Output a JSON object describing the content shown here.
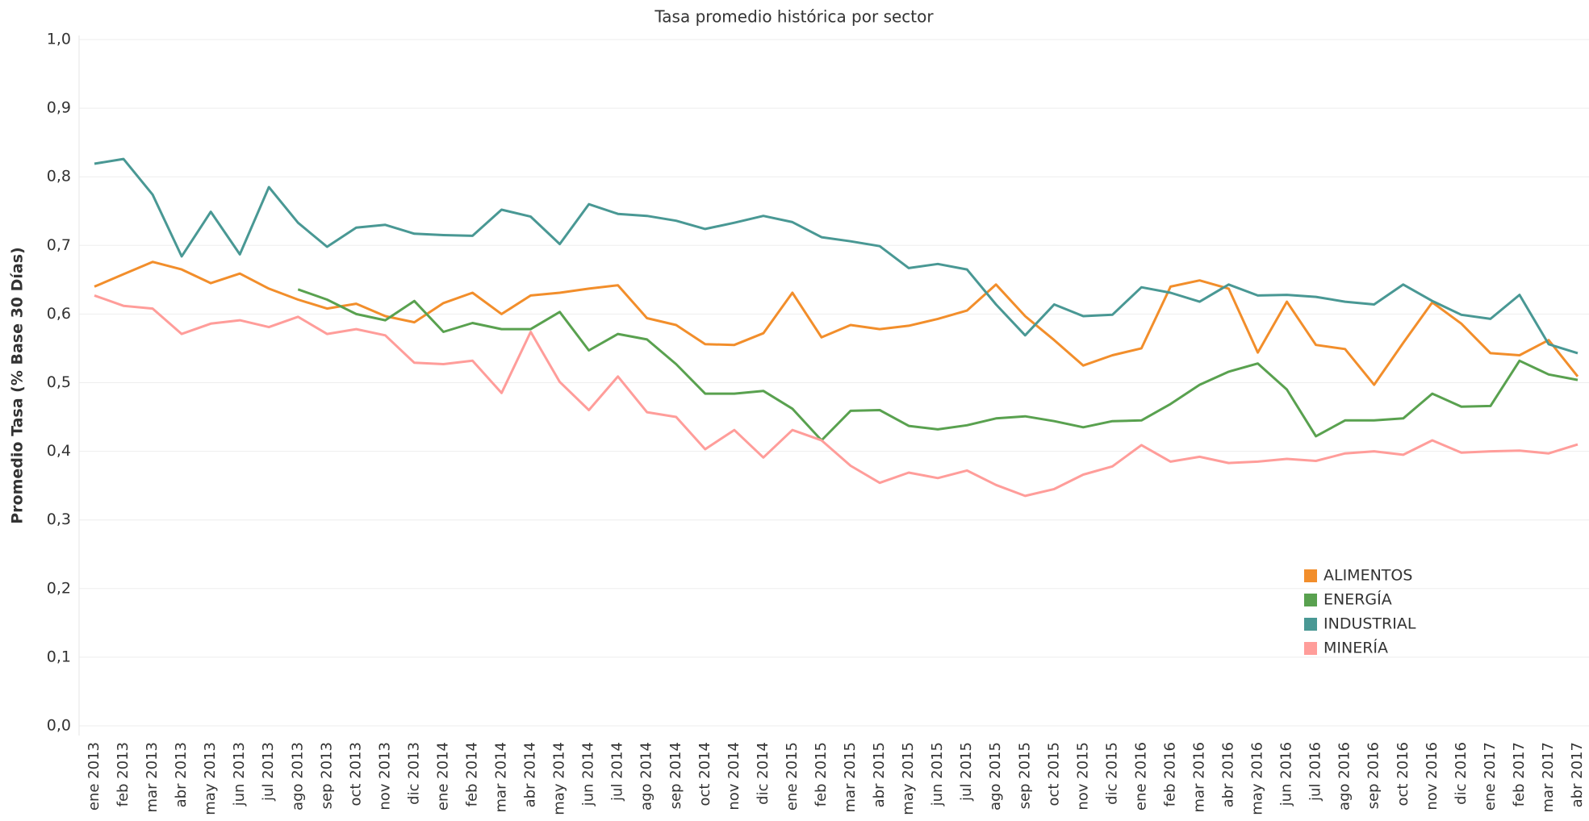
{
  "chart_data": {
    "type": "line",
    "title": "Tasa promedio histórica por sector",
    "y_label": "Promedio Tasa (% Base 30 Días)",
    "categories": [
      "ene 2013",
      "feb 2013",
      "mar 2013",
      "abr 2013",
      "may 2013",
      "jun 2013",
      "jul 2013",
      "ago 2013",
      "sep 2013",
      "oct 2013",
      "nov 2013",
      "dic 2013",
      "ene 2014",
      "feb 2014",
      "mar 2014",
      "abr 2014",
      "may 2014",
      "jun 2014",
      "jul 2014",
      "ago 2014",
      "sep 2014",
      "oct 2014",
      "nov 2014",
      "dic 2014",
      "ene 2015",
      "feb 2015",
      "mar 2015",
      "abr 2015",
      "may 2015",
      "jun 2015",
      "jul 2015",
      "ago 2015",
      "sep 2015",
      "oct 2015",
      "nov 2015",
      "dic 2015",
      "ene 2016",
      "feb 2016",
      "mar 2016",
      "abr 2016",
      "may 2016",
      "jun 2016",
      "jul 2016",
      "ago 2016",
      "sep 2016",
      "oct 2016",
      "nov 2016",
      "dic 2016",
      "ene 2017",
      "feb 2017",
      "mar 2017",
      "abr 2017"
    ],
    "series": [
      {
        "name": "ALIMENTOS",
        "color": "#f28e2b",
        "values": [
          0.64,
          0.658,
          0.676,
          0.665,
          0.645,
          0.659,
          0.637,
          0.621,
          0.608,
          0.615,
          0.597,
          0.588,
          0.616,
          0.631,
          0.6,
          0.627,
          0.631,
          0.637,
          0.642,
          0.594,
          0.584,
          0.556,
          0.555,
          0.572,
          0.631,
          0.566,
          0.584,
          0.578,
          0.583,
          0.593,
          0.605,
          0.643,
          0.597,
          0.562,
          0.525,
          0.54,
          0.55,
          0.64,
          0.649,
          0.637,
          0.544,
          0.618,
          0.555,
          0.549,
          0.497,
          0.558,
          0.617,
          0.586,
          0.543,
          0.54,
          0.562,
          0.509
        ]
      },
      {
        "name": "ENERGÍA",
        "color": "#59a14f",
        "values": [
          null,
          null,
          null,
          null,
          null,
          null,
          null,
          0.636,
          0.621,
          0.6,
          0.591,
          0.619,
          0.574,
          0.587,
          0.578,
          0.578,
          0.603,
          0.547,
          0.571,
          0.563,
          0.527,
          0.484,
          0.484,
          0.488,
          0.462,
          0.416,
          0.459,
          0.46,
          0.437,
          0.432,
          0.438,
          0.448,
          0.451,
          0.444,
          0.435,
          0.444,
          0.445,
          0.469,
          0.497,
          0.516,
          0.528,
          0.49,
          0.422,
          0.445,
          0.445,
          0.448,
          0.484,
          0.465,
          0.466,
          0.532,
          0.512,
          0.504
        ]
      },
      {
        "name": "INDUSTRIAL",
        "color": "#499894",
        "values": [
          0.819,
          0.826,
          0.774,
          0.684,
          0.749,
          0.687,
          0.785,
          0.733,
          0.698,
          0.726,
          0.73,
          0.717,
          0.715,
          0.714,
          0.752,
          0.742,
          0.702,
          0.76,
          0.746,
          0.743,
          0.736,
          0.724,
          0.733,
          0.743,
          0.734,
          0.712,
          0.706,
          0.699,
          0.667,
          0.673,
          0.665,
          0.614,
          0.569,
          0.614,
          0.597,
          0.599,
          0.639,
          0.631,
          0.618,
          0.643,
          0.627,
          0.628,
          0.625,
          0.618,
          0.614,
          0.643,
          0.619,
          0.599,
          0.593,
          0.628,
          0.556,
          0.543
        ]
      },
      {
        "name": "MINERÍA",
        "color": "#ff9d9a",
        "values": [
          0.627,
          0.612,
          0.608,
          0.571,
          0.586,
          0.591,
          0.581,
          0.596,
          0.571,
          0.578,
          0.569,
          0.529,
          0.527,
          0.532,
          0.485,
          0.574,
          0.501,
          0.46,
          0.509,
          0.457,
          0.45,
          0.403,
          0.431,
          0.391,
          0.431,
          0.416,
          0.379,
          0.354,
          0.369,
          0.361,
          0.372,
          0.351,
          0.335,
          0.345,
          0.366,
          0.378,
          0.409,
          0.385,
          0.392,
          0.383,
          0.385,
          0.389,
          0.386,
          0.397,
          0.4,
          0.395,
          0.416,
          0.398,
          0.4,
          0.401,
          0.397,
          0.41
        ]
      }
    ],
    "ylim": [
      0,
      1
    ],
    "yticks": [
      {
        "value": 0,
        "label": "0,0"
      },
      {
        "value": 0.1,
        "label": "0,1"
      },
      {
        "value": 0.2,
        "label": "0,2"
      },
      {
        "value": 0.3,
        "label": "0,3"
      },
      {
        "value": 0.4,
        "label": "0,4"
      },
      {
        "value": 0.5,
        "label": "0,5"
      },
      {
        "value": 0.6,
        "label": "0,6"
      },
      {
        "value": 0.7,
        "label": "0,7"
      },
      {
        "value": 0.8,
        "label": "0,8"
      },
      {
        "value": 0.9,
        "label": "0,9"
      },
      {
        "value": 1,
        "label": "1,0"
      }
    ],
    "grid": true,
    "legend_position": "lower-right"
  }
}
